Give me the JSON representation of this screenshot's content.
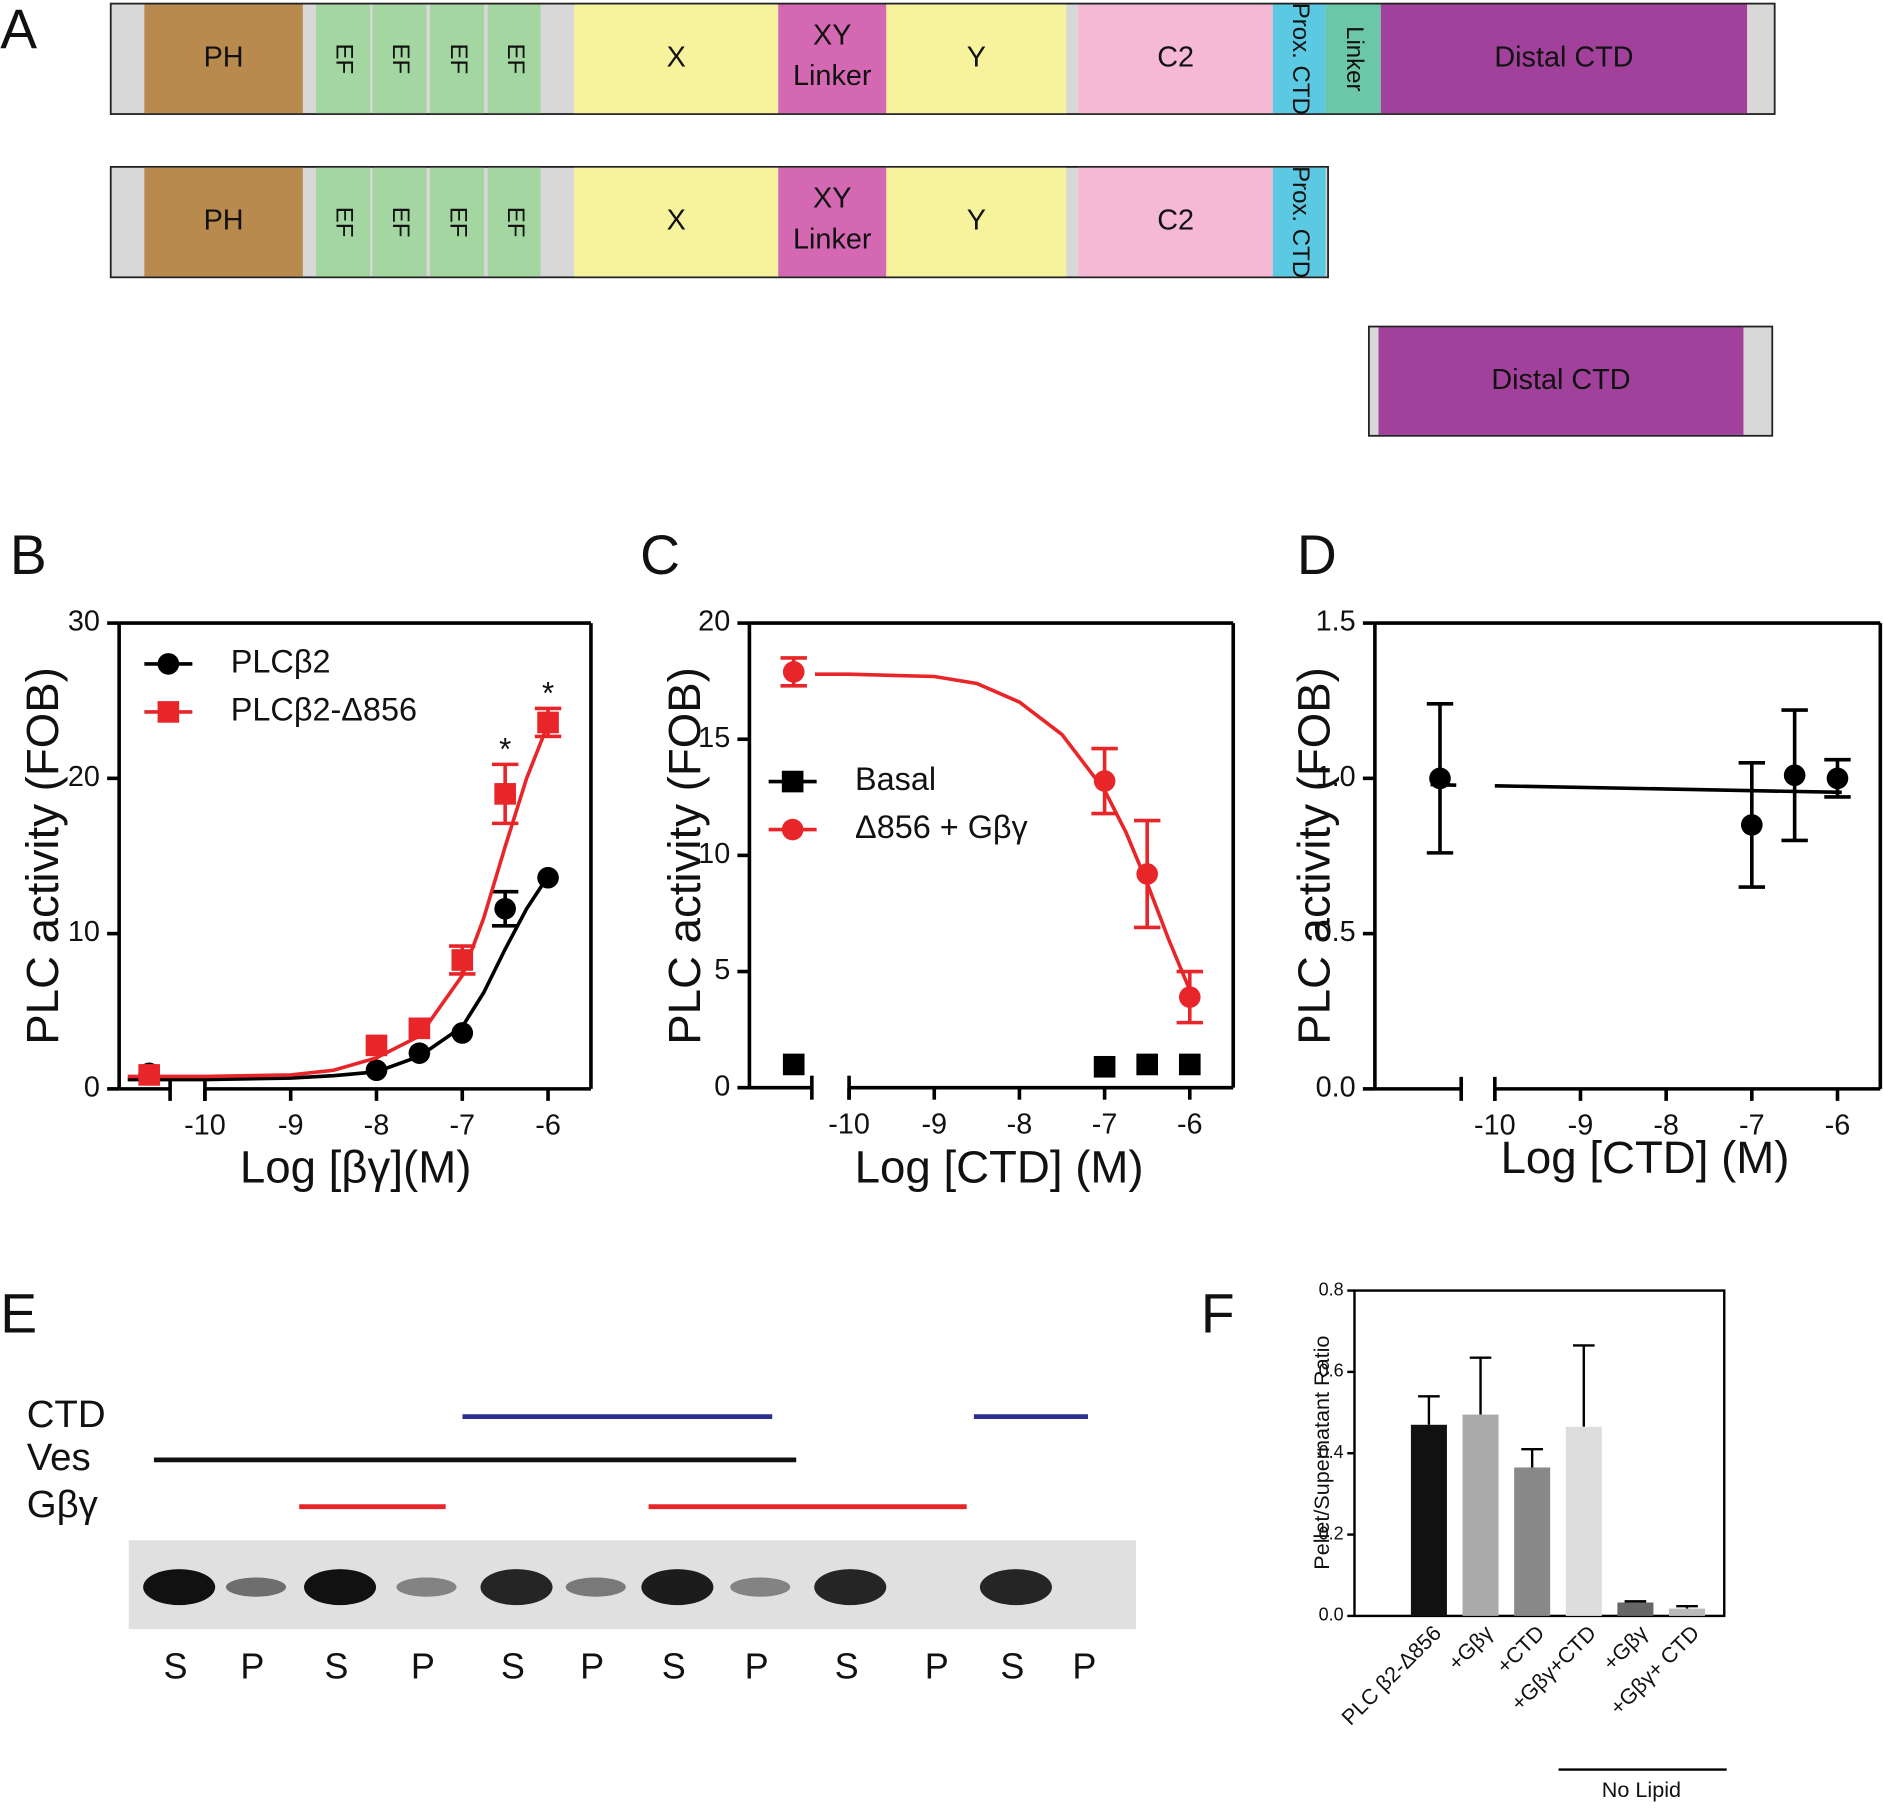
{
  "panel_a": {
    "label": "A",
    "constructs": [
      {
        "domains": [
          {
            "label": "PH",
            "color": "#b88a4e"
          },
          {
            "label": "EF",
            "color": "#a3d6a0"
          },
          {
            "label": "EF",
            "color": "#a3d6a0"
          },
          {
            "label": "EF",
            "color": "#a3d6a0"
          },
          {
            "label": "EF",
            "color": "#a3d6a0"
          },
          {
            "label": "X",
            "color": "#f6f39c"
          },
          {
            "label": [
              "XY",
              "Linker"
            ],
            "color": "#d468b2"
          },
          {
            "label": "Y",
            "color": "#f6f39c"
          },
          {
            "label": "C2",
            "color": "#f5b9d6"
          },
          {
            "label": "Prox. CTD",
            "color": "#5cc9e2"
          },
          {
            "label": "Linker",
            "color": "#6cc6a8"
          },
          {
            "label": "Distal CTD",
            "color": "#a1419b"
          }
        ]
      },
      {
        "domains": [
          {
            "label": "PH",
            "color": "#b88a4e"
          },
          {
            "label": "EF",
            "color": "#a3d6a0"
          },
          {
            "label": "EF",
            "color": "#a3d6a0"
          },
          {
            "label": "EF",
            "color": "#a3d6a0"
          },
          {
            "label": "EF",
            "color": "#a3d6a0"
          },
          {
            "label": "X",
            "color": "#f6f39c"
          },
          {
            "label": [
              "XY",
              "Linker"
            ],
            "color": "#d468b2"
          },
          {
            "label": "Y",
            "color": "#f6f39c"
          },
          {
            "label": "C2",
            "color": "#f5b9d6"
          },
          {
            "label": "Prox. CTD",
            "color": "#5cc9e2"
          }
        ]
      },
      {
        "domains": [
          {
            "label": "Distal CTD",
            "color": "#a1419b"
          }
        ]
      }
    ]
  },
  "chart_data": [
    {
      "type": "line",
      "panel": "B",
      "xlabel": "Log [βγ](M)",
      "ylabel": "PLC activity (FOB)",
      "xlim": [
        -11,
        -5.5
      ],
      "ylim": [
        0,
        30
      ],
      "xticks": [
        -10,
        -9,
        -8,
        -7,
        -6
      ],
      "yticks": [
        0,
        10,
        20,
        30
      ],
      "legend": "upper left",
      "significance": [
        "*",
        "*"
      ],
      "series": [
        {
          "name": "PLCβ2",
          "color": "#000000",
          "marker": "circle",
          "x": [
            -10.65,
            -8,
            -7.5,
            -7,
            -6.5,
            -6
          ],
          "values": [
            1.0,
            1.2,
            2.3,
            3.6,
            11.6,
            13.6
          ],
          "errors": [
            null,
            null,
            null,
            null,
            1.1,
            null
          ],
          "fit_x": [
            -10.9,
            -10,
            -9,
            -8.5,
            -8,
            -7.5,
            -7,
            -6.75,
            -6.5,
            -6.25,
            -6
          ],
          "fit": [
            0.6,
            0.6,
            0.7,
            0.85,
            1.1,
            2.1,
            4.0,
            6.2,
            9.0,
            11.6,
            13.7
          ]
        },
        {
          "name": "PLCβ2-Δ856",
          "color": "#e8262a",
          "marker": "square",
          "x": [
            -10.65,
            -8,
            -7.5,
            -7,
            -6.5,
            -6
          ],
          "values": [
            0.9,
            2.8,
            3.9,
            8.3,
            19.0,
            23.6
          ],
          "errors": [
            null,
            null,
            null,
            0.9,
            1.9,
            0.9
          ],
          "fit_x": [
            -10.9,
            -10,
            -9,
            -8.5,
            -8,
            -7.5,
            -7,
            -6.75,
            -6.5,
            -6.25,
            -6
          ],
          "fit": [
            0.8,
            0.8,
            0.9,
            1.2,
            2.0,
            3.4,
            7.3,
            11.0,
            15.6,
            20.0,
            23.5
          ]
        }
      ]
    },
    {
      "type": "line",
      "panel": "C",
      "xlabel": "Log [CTD] (M)",
      "ylabel": "PLC activity (FOB)",
      "xlim": [
        -11.17,
        -5.49
      ],
      "ylim": [
        0,
        20
      ],
      "xticks": [
        -10,
        -9,
        -8,
        -7,
        -6
      ],
      "yticks": [
        0,
        5,
        10,
        15,
        20
      ],
      "legend": "center left",
      "series": [
        {
          "name": "Basal",
          "color": "#000000",
          "marker": "square",
          "x": [
            -10.65,
            -7,
            -6.5,
            -6
          ],
          "values": [
            1.0,
            0.9,
            1.0,
            1.0
          ]
        },
        {
          "name": "Δ856 + Gβγ",
          "color": "#e8262a",
          "marker": "circle",
          "x": [
            -10.65,
            -7,
            -6.5,
            -6
          ],
          "values": [
            17.9,
            13.2,
            9.2,
            3.9
          ],
          "errors": [
            0.6,
            1.4,
            2.3,
            1.1
          ],
          "fit_x": [
            -10.4,
            -10,
            -9,
            -8.5,
            -8,
            -7.5,
            -7,
            -6.75,
            -6.5,
            -6.25,
            -6
          ],
          "fit": [
            17.8,
            17.8,
            17.7,
            17.4,
            16.6,
            15.2,
            12.8,
            11.0,
            8.8,
            6.4,
            4.2
          ]
        }
      ]
    },
    {
      "type": "line",
      "panel": "D",
      "xlabel": "Log [CTD] (M)",
      "ylabel": "PLC activity (FOB)",
      "xlim": [
        -11.4,
        -5.5
      ],
      "ylim": [
        0,
        1.5
      ],
      "xticks": [
        -10,
        -9,
        -8,
        -7,
        -6
      ],
      "yticks": [
        {
          "value": 0,
          "label": "0.0"
        },
        0.5,
        {
          "value": 1,
          "label": "1.0"
        },
        1.5
      ],
      "series": [
        {
          "color": "#000000",
          "marker": "circle",
          "x": [
            -10.64,
            -7,
            -6.5,
            -6
          ],
          "values": [
            1.0,
            0.85,
            1.01,
            1.0
          ],
          "errors": [
            0.24,
            0.2,
            0.21,
            0.06
          ],
          "fit_x": [
            -10.75,
            -10.45,
            -10.3,
            -10,
            -5.95
          ],
          "fit": [
            0.98,
            0.978,
            null,
            0.976,
            0.955
          ]
        }
      ]
    },
    {
      "type": "bar",
      "panel": "F",
      "ylabel": "Pellet/Supernatant Ratio",
      "categories": [
        "PLC β2-Δ856",
        "+Gβγ",
        "+CTD",
        "+Gβγ+CTD",
        "+Gβγ",
        "+Gβγ+ CTD"
      ],
      "values": [
        0.47,
        0.495,
        0.365,
        0.465,
        0.033,
        0.018
      ],
      "errors": [
        0.07,
        0.14,
        0.045,
        0.2,
        0.003,
        0.006
      ],
      "colors": [
        "#111111",
        "#aaaaaa",
        "#888888",
        "#dddddd",
        "#666666",
        "#bbbbbb"
      ],
      "ylim": [
        0,
        0.8
      ],
      "yticks": [
        {
          "value": 0,
          "label": "0.0"
        },
        0.2,
        0.4,
        0.6,
        0.8
      ],
      "annotation": "No Lipid"
    }
  ],
  "panel_e": {
    "label": "E",
    "rows": [
      "CTD",
      "Ves",
      "Gβγ"
    ],
    "lanes": [
      "S",
      "P",
      "S",
      "P",
      "S",
      "P",
      "S",
      "P",
      "S",
      "P",
      "S",
      "P"
    ]
  }
}
